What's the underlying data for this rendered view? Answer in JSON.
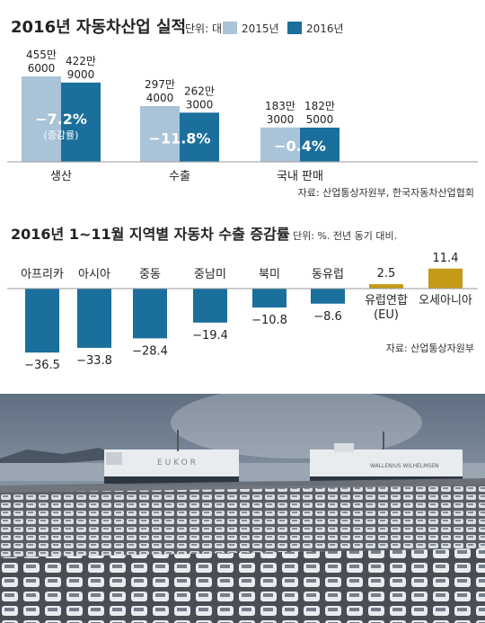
{
  "colors": {
    "y2015": "#a9c3d8",
    "y2016": "#1a6f9c",
    "negative": "#1a6f9c",
    "positive": "#c49a17",
    "line": "#9a9a9a",
    "text": "#222222",
    "change_text": "#ffffff"
  },
  "chart_data": [
    {
      "type": "bar",
      "title": "2016년 자동차산업 실적",
      "unit": "단위: 대",
      "legend": [
        "2015년",
        "2016년"
      ],
      "legend_position": "top-right",
      "categories": [
        "생산",
        "수출",
        "국내 판매"
      ],
      "series": [
        {
          "name": "2015년",
          "values": [
            4556000,
            2974000,
            1833000
          ],
          "labels": [
            [
              "455만",
              "6000"
            ],
            [
              "297만",
              "4000"
            ],
            [
              "183만",
              "3000"
            ]
          ]
        },
        {
          "name": "2016년",
          "values": [
            4229000,
            2623000,
            1825000
          ],
          "labels": [
            [
              "422만",
              "9000"
            ],
            [
              "262만",
              "3000"
            ],
            [
              "182만",
              "5000"
            ]
          ]
        }
      ],
      "change": [
        {
          "text": "−7.2%",
          "sub": "(증감률)"
        },
        {
          "text": "−11.8%",
          "sub": ""
        },
        {
          "text": "−0.4%",
          "sub": ""
        }
      ],
      "source": "자료: 산업통상자원부, 한국자동차산업협회"
    },
    {
      "type": "bar",
      "title": "2016년 1~11월 지역별 자동차 수출 증감률",
      "unit": "단위: %. 전년 동기 대비.",
      "categories": [
        [
          "아프리카"
        ],
        [
          "아시아"
        ],
        [
          "중동"
        ],
        [
          "중남미"
        ],
        [
          "북미"
        ],
        [
          "동유럽"
        ],
        [
          "유럽연합",
          "(EU)"
        ],
        [
          "오세아니아"
        ]
      ],
      "values": [
        -36.5,
        -33.8,
        -28.4,
        -19.4,
        -10.8,
        -8.6,
        2.5,
        11.4
      ],
      "value_labels": [
        "−36.5",
        "−33.8",
        "−28.4",
        "−19.4",
        "−10.8",
        "−8.6",
        "2.5",
        "11.4"
      ],
      "source": "자료: 산업통상자원부"
    }
  ],
  "photo": {
    "description_icon": "car-export-port-photo-icon",
    "ship_left_label": "EUKOR",
    "ship_right_label": "WALLENIUS WILHELMSEN"
  }
}
